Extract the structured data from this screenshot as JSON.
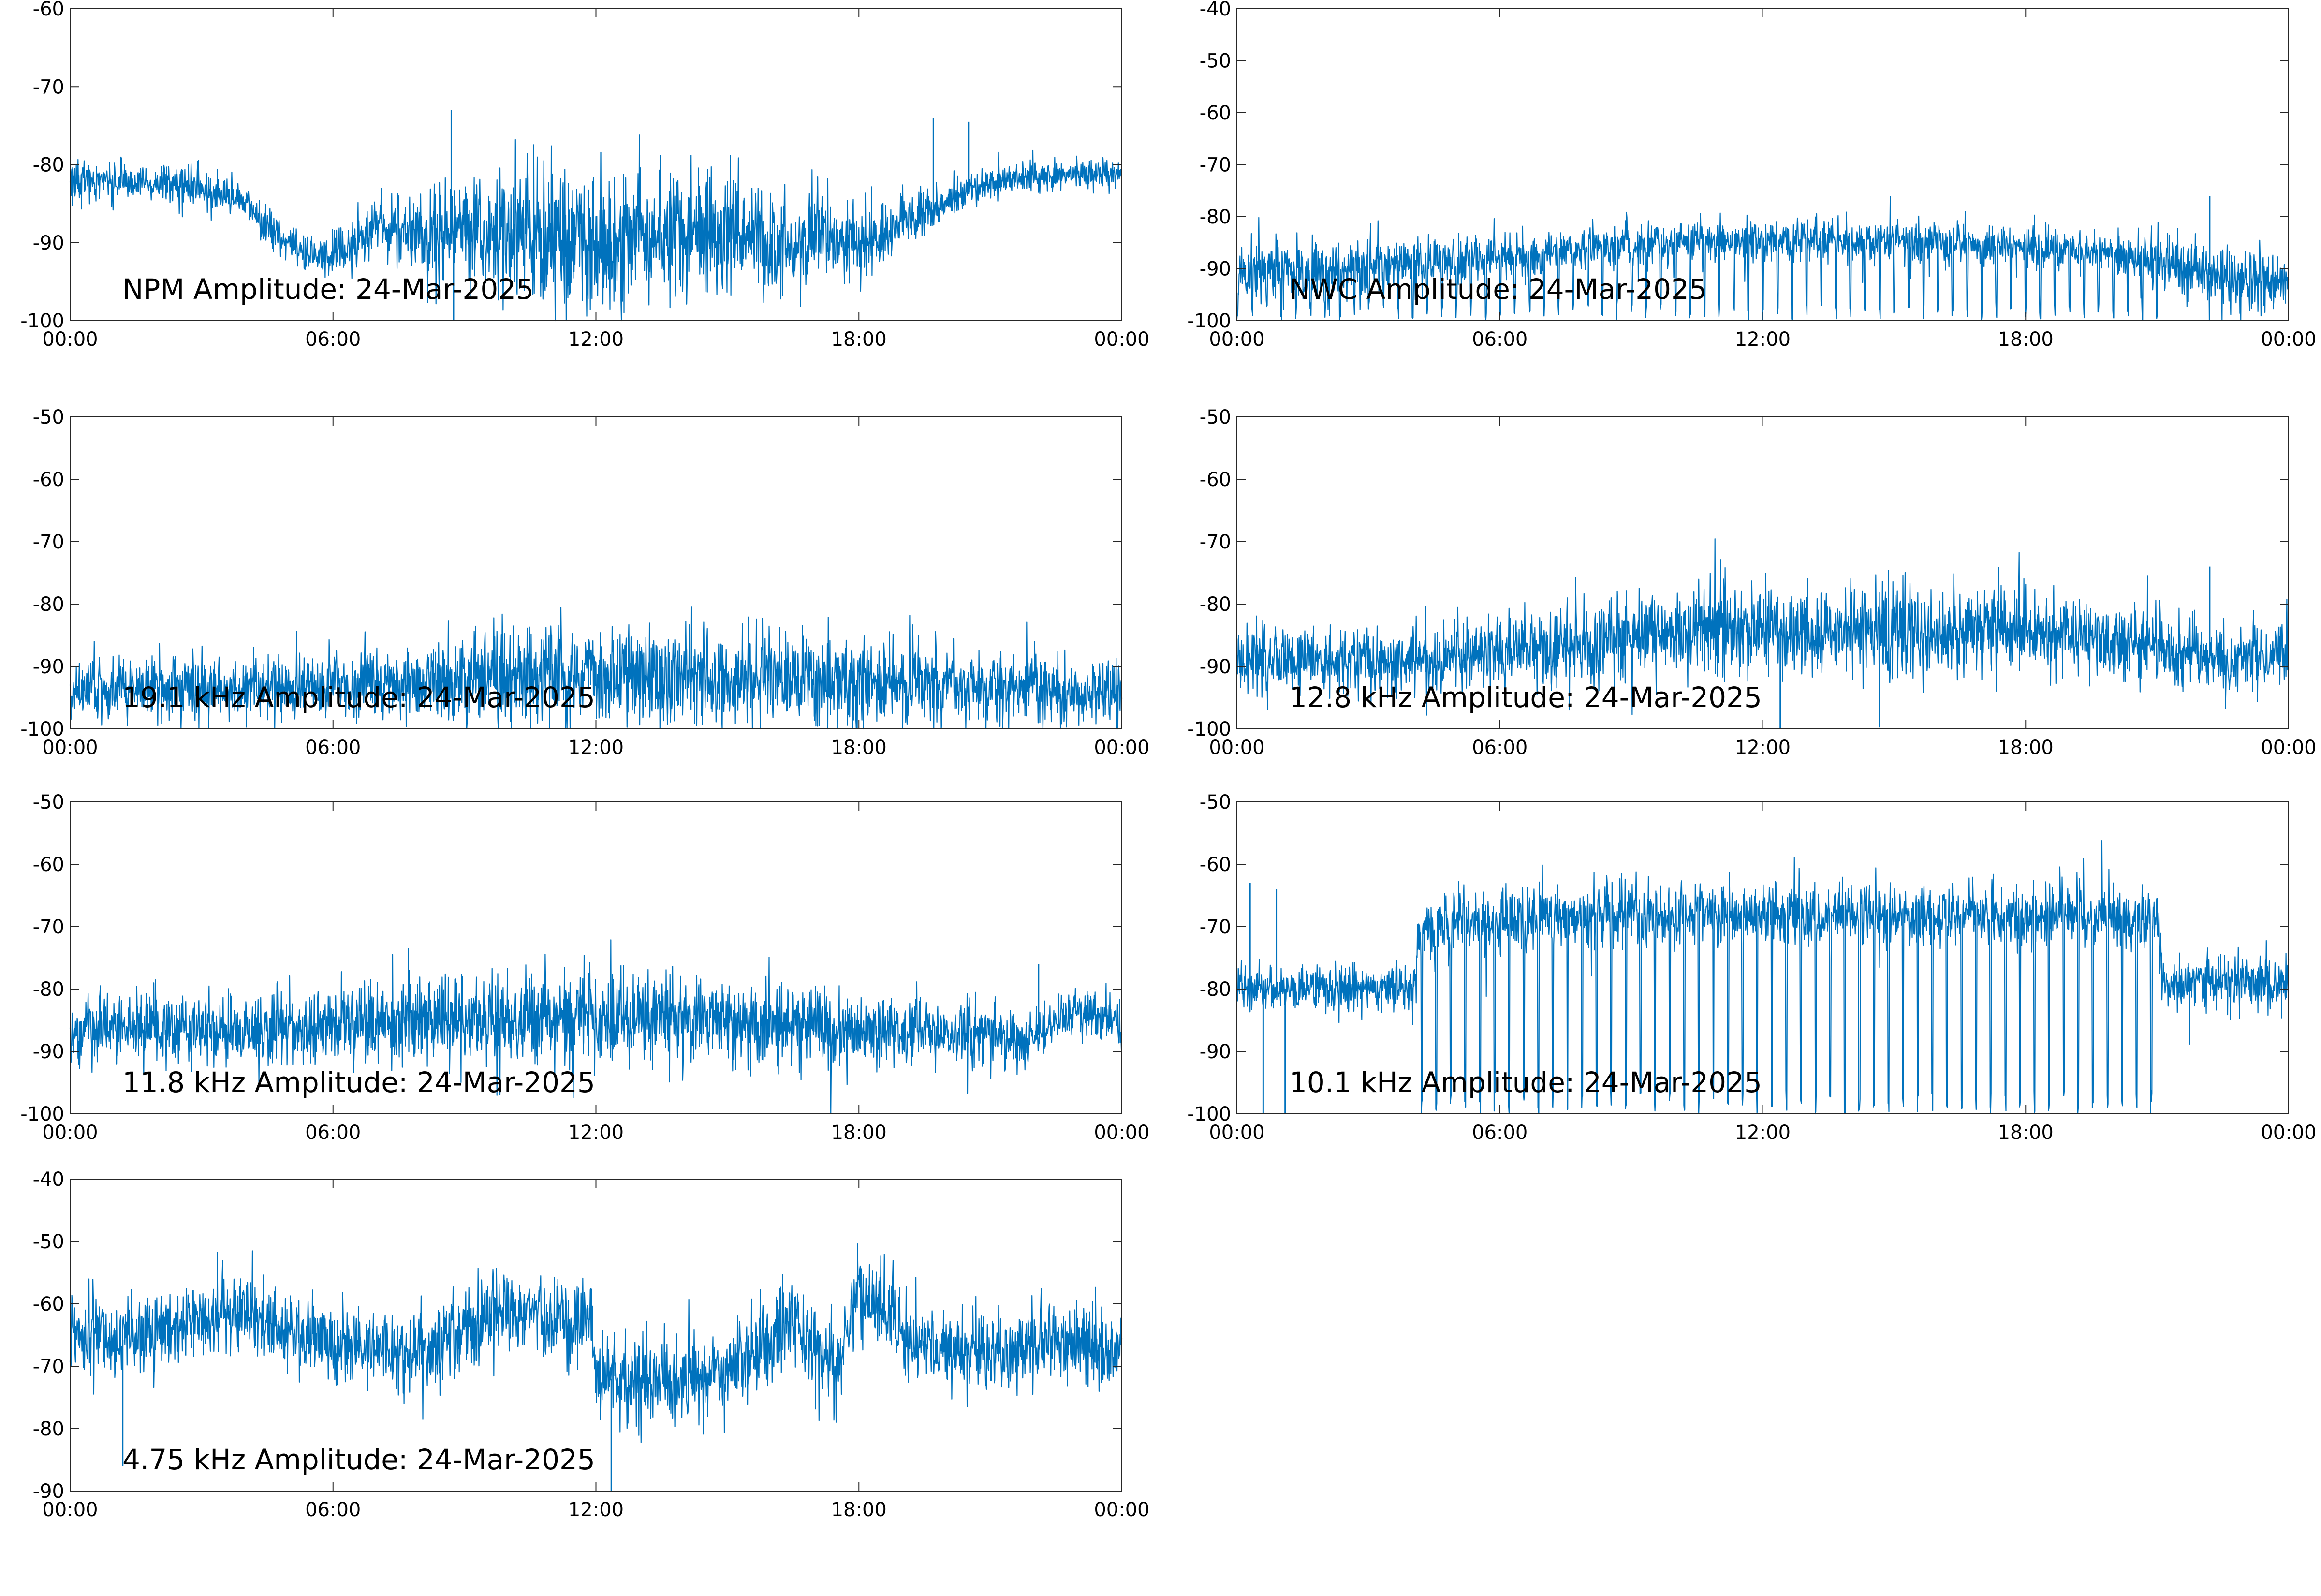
{
  "figure": {
    "background": "#ffffff",
    "line_color": "#0072bd",
    "axis_color": "#262626"
  },
  "chart_data": [
    {
      "type": "line",
      "title": "NPM Amplitude: 24-Mar-2025",
      "xlabel": "",
      "ylabel": "",
      "xticks": [
        "00:00",
        "06:00",
        "12:00",
        "18:00",
        "00:00"
      ],
      "ylim": [
        -100,
        -60
      ],
      "yticks": [
        -60,
        -70,
        -80,
        -90,
        -100
      ],
      "grid": false,
      "x_hours": [
        0,
        1,
        2,
        3,
        4,
        4.5,
        5,
        5.5,
        6,
        6.5,
        7,
        7.5,
        8,
        8.5,
        9,
        10,
        11,
        12,
        13,
        14,
        15,
        15.5,
        16,
        16.5,
        17,
        17.5,
        18,
        18.5,
        19,
        19.5,
        20,
        21,
        22,
        23,
        24
      ],
      "series": [
        {
          "values": [
            -82,
            -82,
            -82.5,
            -83,
            -85,
            -88,
            -90,
            -92,
            -92,
            -90,
            -88,
            -88.5,
            -89,
            -89,
            -88,
            -89,
            -89.5,
            -89,
            -89,
            -89,
            -88.5,
            -89,
            -90,
            -91,
            -88,
            -90,
            -91,
            -89,
            -87,
            -86,
            -85,
            -82.5,
            -81.5,
            -81,
            -81
          ],
          "noise": [
            1.2,
            1.2,
            1.2,
            1.2,
            1.2,
            1.3,
            1.3,
            1.3,
            1.3,
            1.5,
            1.8,
            2,
            2.5,
            3,
            3.5,
            4,
            4,
            4,
            4,
            4,
            4,
            3.5,
            3.5,
            3,
            3,
            2.5,
            2.5,
            2,
            1.8,
            1.5,
            1.5,
            1,
            1,
            1,
            1
          ],
          "spikes": [
            [
              8.7,
              -73
            ],
            [
              8.75,
              -100
            ],
            [
              19.7,
              -74
            ],
            [
              20.5,
              -74.5
            ]
          ]
        }
      ]
    },
    {
      "type": "line",
      "title": "NWC Amplitude: 24-Mar-2025",
      "xlabel": "",
      "ylabel": "",
      "xticks": [
        "00:00",
        "06:00",
        "12:00",
        "18:00",
        "00:00"
      ],
      "ylim": [
        -100,
        -40
      ],
      "yticks": [
        -40,
        -50,
        -60,
        -70,
        -80,
        -90,
        -100
      ],
      "grid": false,
      "x_hours": [
        0,
        2,
        4,
        6,
        8,
        10,
        12,
        14,
        16,
        18,
        20,
        21,
        22,
        23,
        24
      ],
      "series": [
        {
          "values": [
            -91,
            -90,
            -89,
            -88,
            -86,
            -85,
            -84.5,
            -84.5,
            -85,
            -86,
            -87,
            -88,
            -91,
            -92,
            -92
          ],
          "noise": [
            3,
            3,
            2.5,
            2.2,
            2,
            2,
            2,
            2,
            2,
            1.8,
            1.8,
            2.5,
            3,
            3,
            3
          ],
          "dip_period": 0.333,
          "dip_range": [
            0,
            21
          ],
          "dip_to": -100,
          "spikes": [
            [
              22.2,
              -76
            ]
          ]
        }
      ]
    },
    {
      "type": "line",
      "title": "19.1 kHz Amplitude: 24-Mar-2025",
      "xlabel": "",
      "ylabel": "",
      "xticks": [
        "00:00",
        "06:00",
        "12:00",
        "18:00",
        "00:00"
      ],
      "ylim": [
        -100,
        -50
      ],
      "yticks": [
        -50,
        -60,
        -70,
        -80,
        -90,
        -100
      ],
      "grid": false,
      "x_hours": [
        0,
        3,
        6,
        8,
        9,
        12,
        15,
        18,
        21,
        24
      ],
      "series": [
        {
          "values": [
            -94,
            -93.5,
            -93,
            -92.5,
            -91.5,
            -91.5,
            -92,
            -92,
            -93,
            -94.5
          ],
          "noise": [
            2.5,
            2.5,
            2.5,
            3,
            4,
            4,
            4,
            3.5,
            3,
            2.5
          ],
          "spikes": []
        }
      ]
    },
    {
      "type": "line",
      "title": "12.8 kHz Amplitude: 24-Mar-2025",
      "xlabel": "",
      "ylabel": "",
      "xticks": [
        "00:00",
        "06:00",
        "12:00",
        "18:00",
        "00:00"
      ],
      "ylim": [
        -100,
        -50
      ],
      "yticks": [
        -50,
        -60,
        -70,
        -80,
        -90,
        -100
      ],
      "grid": false,
      "x_hours": [
        0,
        3,
        6,
        8,
        10,
        12,
        15,
        18,
        20,
        21.5,
        22.5,
        24
      ],
      "series": [
        {
          "values": [
            -89,
            -89,
            -88,
            -86.5,
            -84,
            -84,
            -84,
            -84.5,
            -85.5,
            -88,
            -89,
            -88
          ],
          "noise": [
            2.5,
            2.5,
            2.8,
            3,
            3.5,
            3.5,
            3.5,
            3.2,
            3,
            3,
            2.5,
            2.5
          ],
          "spikes": [
            [
              12.4,
              -100
            ],
            [
              22.2,
              -74
            ]
          ]
        }
      ]
    },
    {
      "type": "line",
      "title": "11.8 kHz Amplitude: 24-Mar-2025",
      "xlabel": "",
      "ylabel": "",
      "xticks": [
        "00:00",
        "06:00",
        "12:00",
        "18:00",
        "00:00"
      ],
      "ylim": [
        -100,
        -50
      ],
      "yticks": [
        -50,
        -60,
        -70,
        -80,
        -90,
        -100
      ],
      "grid": false,
      "x_hours": [
        0,
        4,
        8,
        12,
        16,
        20,
        22,
        22.5,
        23,
        24
      ],
      "series": [
        {
          "values": [
            -86.5,
            -86.5,
            -85,
            -84.5,
            -85.5,
            -87,
            -88,
            -85,
            -84,
            -85.5
          ],
          "noise": [
            2.8,
            2.8,
            3.2,
            3.5,
            3.2,
            2.8,
            2.5,
            2,
            2,
            2
          ],
          "spikes": [
            [
              22.1,
              -76
            ]
          ]
        }
      ]
    },
    {
      "type": "line",
      "title": "10.1 kHz Amplitude: 24-Mar-2025",
      "xlabel": "",
      "ylabel": "",
      "xticks": [
        "00:00",
        "06:00",
        "12:00",
        "18:00",
        "00:00"
      ],
      "ylim": [
        -100,
        -50
      ],
      "yticks": [
        -50,
        -60,
        -70,
        -80,
        -90,
        -100
      ],
      "grid": false,
      "x_hours": [
        0,
        2,
        4,
        4.2,
        6,
        10,
        14,
        18,
        21,
        21.2,
        22,
        24
      ],
      "series": [
        {
          "values": [
            -80,
            -80,
            -80,
            -70,
            -69,
            -68,
            -68,
            -68,
            -69,
            -79,
            -79,
            -79
          ],
          "noise": [
            1.8,
            1.8,
            1.8,
            2.5,
            2.5,
            2.5,
            2.5,
            2.5,
            2.5,
            2.2,
            2.2,
            2.2
          ],
          "dip_period": 0.333,
          "dip_range": [
            4.2,
            21
          ],
          "dip_to": -100,
          "spikes": [
            [
              0.3,
              -63
            ],
            [
              0.6,
              -100
            ],
            [
              1.1,
              -100
            ],
            [
              0.9,
              -64
            ]
          ]
        }
      ]
    },
    {
      "type": "line",
      "title": "4.75 kHz Amplitude: 24-Mar-2025",
      "xlabel": "",
      "ylabel": "",
      "xticks": [
        "00:00",
        "06:00",
        "12:00",
        "18:00",
        "00:00"
      ],
      "ylim": [
        -90,
        -40
      ],
      "yticks": [
        -40,
        -50,
        -60,
        -70,
        -80,
        -90
      ],
      "grid": false,
      "x_hours": [
        0,
        1,
        2,
        3,
        4,
        5,
        6,
        7,
        8,
        9,
        10,
        11,
        11.9,
        12,
        13,
        14,
        15,
        16,
        16.5,
        17,
        17.5,
        18,
        18.5,
        19,
        20,
        21,
        22,
        23,
        24
      ],
      "series": [
        {
          "values": [
            -64,
            -66,
            -65,
            -63,
            -62,
            -64,
            -66,
            -67,
            -68,
            -65,
            -60,
            -63,
            -62,
            -72,
            -72,
            -72,
            -70,
            -66,
            -63,
            -66,
            -70,
            -58,
            -62,
            -65,
            -68,
            -68,
            -66,
            -66,
            -67
          ],
          "noise": [
            3,
            3,
            3,
            3,
            3,
            3,
            3,
            3,
            3,
            3,
            3,
            3,
            3,
            3.5,
            3.5,
            3.5,
            3.5,
            3.5,
            3.5,
            3.5,
            3.5,
            3,
            3,
            3,
            3,
            3,
            3,
            3,
            3
          ],
          "spikes": [
            [
              1.2,
              -86
            ],
            [
              12.35,
              -90
            ]
          ]
        }
      ]
    }
  ]
}
